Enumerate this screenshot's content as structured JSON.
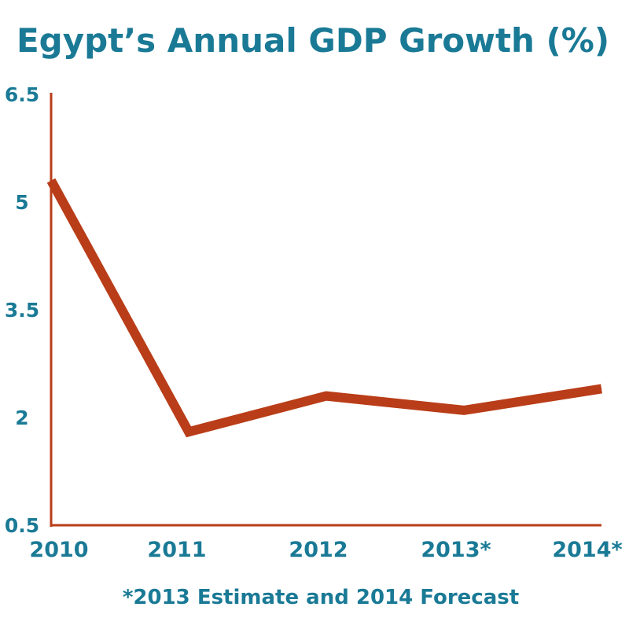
{
  "colors": {
    "title": "#1a7a96",
    "line": "#b93d18",
    "axis": "#b93d18",
    "tick_labels": "#1a7a96"
  },
  "chart_data": {
    "type": "line",
    "title": "Egypt’s Annual GDP Growth (%)",
    "xlabel": "",
    "ylabel": "",
    "categories": [
      "2010",
      "2011",
      "2012",
      "2013*",
      "2014*"
    ],
    "series": [
      {
        "name": "GDP Growth (%)",
        "values": [
          5.3,
          1.8,
          2.3,
          2.1,
          2.4
        ]
      }
    ],
    "ylim": [
      0.5,
      6.5
    ],
    "yticks": [
      "0.5",
      "2",
      "3.5",
      "5",
      "6.5"
    ],
    "grid": false,
    "footnote": "*2013 Estimate and 2014 Forecast"
  }
}
